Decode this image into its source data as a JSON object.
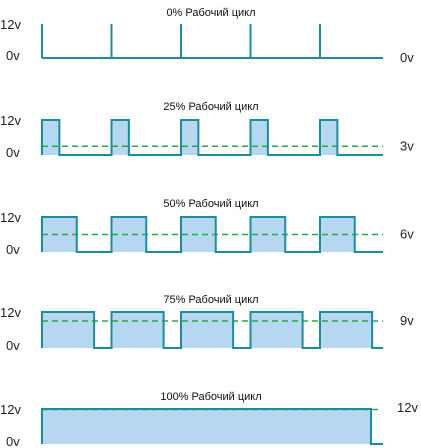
{
  "colors": {
    "wave": "#1d8d9c",
    "fill": "#b5d7ef",
    "average": "#2aa84a"
  },
  "high_label": "12v",
  "low_label": "0v",
  "panels": [
    {
      "title": "0% Рабочий цикл",
      "duty": 0,
      "average_label": "0v",
      "average_value": 0
    },
    {
      "title": "25% Рабочий цикл",
      "duty": 0.25,
      "average_label": "3v",
      "average_value": 3
    },
    {
      "title": "50% Рабочий цикл",
      "duty": 0.5,
      "average_label": "6v",
      "average_value": 6
    },
    {
      "title": "75% Рабочий цикл",
      "duty": 0.75,
      "average_label": "9v",
      "average_value": 9
    },
    {
      "title": "100% Рабочий цикл",
      "duty": 1,
      "average_label": "12v",
      "average_value": 12
    }
  ]
}
